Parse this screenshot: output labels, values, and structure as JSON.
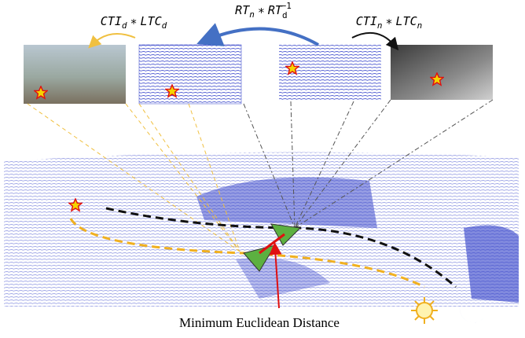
{
  "formulas": {
    "day": [
      "CTI",
      "d",
      "∗",
      "LTC",
      "d"
    ],
    "relative": [
      "RT",
      "n",
      "∗",
      "RT",
      "d",
      "−1"
    ],
    "night": [
      "CTI",
      "n",
      "∗",
      "LTC",
      "n"
    ]
  },
  "caption": "Minimum Euclidean Distance"
}
